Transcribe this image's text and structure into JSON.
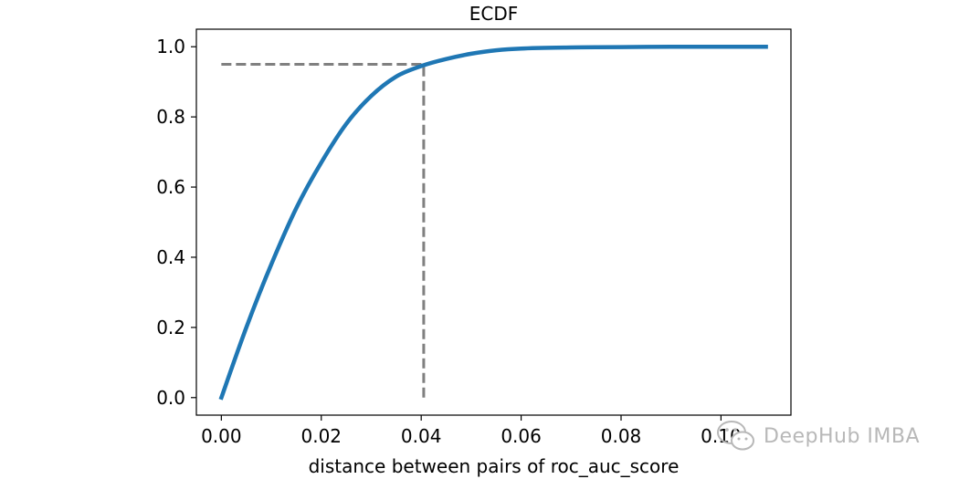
{
  "chart_data": {
    "type": "line",
    "title": "ECDF",
    "xlabel": "distance between pairs of roc_auc_score",
    "ylabel": "",
    "xlim": [
      -0.005,
      0.114
    ],
    "ylim": [
      -0.05,
      1.05
    ],
    "xticks": [
      "0.00",
      "0.02",
      "0.04",
      "0.06",
      "0.08",
      "0.10"
    ],
    "yticks": [
      "0.0",
      "0.2",
      "0.4",
      "0.6",
      "0.8",
      "1.0"
    ],
    "grid": false,
    "colors": {
      "curve": "#1f77b4",
      "reference": "#808080"
    },
    "series": [
      {
        "x": [
          0.0,
          0.005,
          0.01,
          0.015,
          0.02,
          0.025,
          0.03,
          0.035,
          0.04,
          0.045,
          0.05,
          0.055,
          0.06,
          0.07,
          0.08,
          0.09,
          0.1,
          0.109
        ],
        "y": [
          0.0,
          0.2,
          0.38,
          0.54,
          0.67,
          0.78,
          0.86,
          0.915,
          0.945,
          0.965,
          0.98,
          0.99,
          0.995,
          0.998,
          0.999,
          1.0,
          1.0,
          1.0
        ]
      }
    ],
    "reference_lines": {
      "horizontal": {
        "y": 0.95,
        "x_from": 0.0,
        "x_to": 0.0405
      },
      "vertical": {
        "x": 0.0405,
        "y_from": 0.0,
        "y_to": 0.95
      }
    }
  },
  "watermark": {
    "text": "DeepHub IMBA",
    "icon": "wechat-icon"
  }
}
